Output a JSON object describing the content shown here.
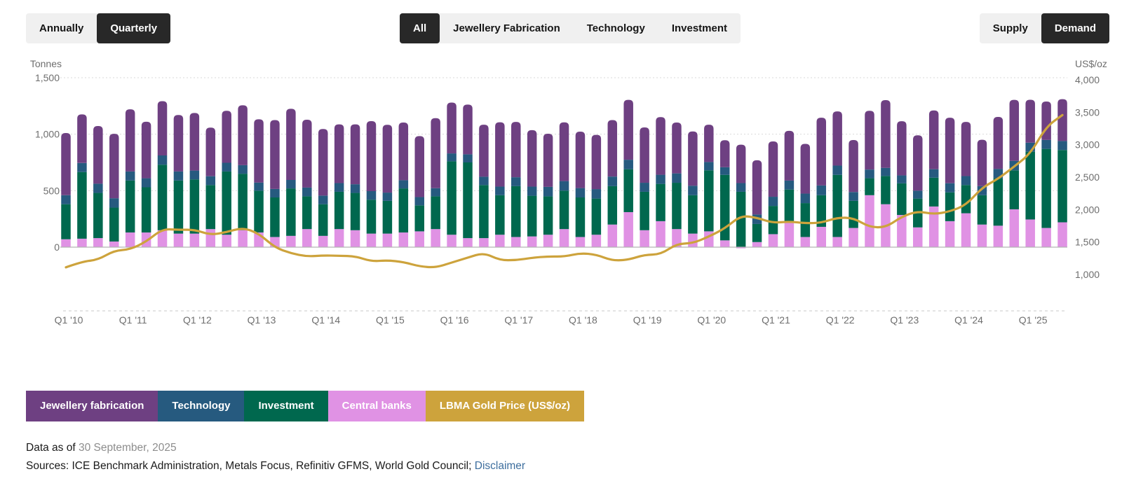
{
  "toolbar": {
    "groups": [
      {
        "name": "frequency",
        "options": [
          {
            "label": "Annually",
            "selected": false
          },
          {
            "label": "Quarterly",
            "selected": true
          }
        ]
      },
      {
        "name": "category",
        "options": [
          {
            "label": "All",
            "selected": true
          },
          {
            "label": "Jewellery Fabrication",
            "selected": false
          },
          {
            "label": "Technology",
            "selected": false
          },
          {
            "label": "Investment",
            "selected": false
          }
        ]
      },
      {
        "name": "flow",
        "options": [
          {
            "label": "Supply",
            "selected": false
          },
          {
            "label": "Demand",
            "selected": true
          }
        ]
      }
    ]
  },
  "chart_data": {
    "type": "bar",
    "subtype": "stacked-columns-with-line-overlay",
    "stack_order_bottom_to_top": [
      "Central banks",
      "Investment",
      "Technology",
      "Jewellery fabrication"
    ],
    "left_axis": {
      "title": "Tonnes",
      "ticks": [
        0,
        500,
        1000,
        1500
      ],
      "tick_labels": [
        "0",
        "500",
        "1,000",
        "1,500"
      ],
      "max": 1500
    },
    "right_axis": {
      "title": "US$/oz",
      "ticks": [
        1000,
        1500,
        2000,
        2500,
        3000,
        3500,
        4000
      ],
      "tick_labels": [
        "1,000",
        "1,500",
        "2,000",
        "2,500",
        "3,000",
        "3,500",
        "4,000"
      ]
    },
    "x_tick_labels": [
      "Q1 '10",
      "Q1 '11",
      "Q1 '12",
      "Q1 '13",
      "Q1 '14",
      "Q1 '15",
      "Q1 '16",
      "Q1 '17",
      "Q1 '18",
      "Q1 '19",
      "Q1 '20",
      "Q1 '21",
      "Q1 '22",
      "Q1 '23",
      "Q1 '24",
      "Q1 '25"
    ],
    "x": [
      "Q1 '10",
      "Q2 '10",
      "Q3 '10",
      "Q4 '10",
      "Q1 '11",
      "Q2 '11",
      "Q3 '11",
      "Q4 '11",
      "Q1 '12",
      "Q2 '12",
      "Q3 '12",
      "Q4 '12",
      "Q1 '13",
      "Q2 '13",
      "Q3 '13",
      "Q4 '13",
      "Q1 '14",
      "Q2 '14",
      "Q3 '14",
      "Q4 '14",
      "Q1 '15",
      "Q2 '15",
      "Q3 '15",
      "Q4 '15",
      "Q1 '16",
      "Q2 '16",
      "Q3 '16",
      "Q4 '16",
      "Q1 '17",
      "Q2 '17",
      "Q3 '17",
      "Q4 '17",
      "Q1 '18",
      "Q2 '18",
      "Q3 '18",
      "Q4 '18",
      "Q1 '19",
      "Q2 '19",
      "Q3 '19",
      "Q4 '19",
      "Q1 '20",
      "Q2 '20",
      "Q3 '20",
      "Q4 '20",
      "Q1 '21",
      "Q2 '21",
      "Q3 '21",
      "Q4 '21",
      "Q1 '22",
      "Q2 '22",
      "Q3 '22",
      "Q4 '22",
      "Q1 '23",
      "Q2 '23",
      "Q3 '23",
      "Q4 '23",
      "Q1 '24",
      "Q2 '24",
      "Q3 '24",
      "Q4 '24",
      "Q1 '25",
      "Q2 '25",
      "Q3 '25"
    ],
    "series": [
      {
        "name": "Jewellery fabrication",
        "color": "#6e4082",
        "values": [
          550,
          430,
          510,
          570,
          550,
          500,
          480,
          500,
          510,
          430,
          460,
          530,
          560,
          610,
          630,
          600,
          590,
          520,
          530,
          620,
          600,
          510,
          540,
          620,
          450,
          440,
          460,
          570,
          490,
          500,
          470,
          520,
          500,
          480,
          500,
          530,
          490,
          510,
          450,
          480,
          330,
          240,
          340,
          480,
          490,
          440,
          440,
          600,
          480,
          460,
          520,
          600,
          480,
          490,
          520,
          580,
          480,
          410,
          460,
          540,
          380,
          340,
          370
        ]
      },
      {
        "name": "Technology",
        "color": "#265a7f",
        "values": [
          80,
          80,
          82,
          83,
          80,
          80,
          82,
          80,
          78,
          78,
          77,
          76,
          72,
          75,
          75,
          78,
          76,
          77,
          77,
          76,
          73,
          73,
          73,
          72,
          70,
          72,
          74,
          76,
          79,
          81,
          84,
          85,
          83,
          84,
          85,
          84,
          80,
          81,
          83,
          84,
          74,
          67,
          77,
          84,
          81,
          80,
          84,
          86,
          82,
          78,
          77,
          72,
          70,
          70,
          75,
          81,
          79,
          81,
          83,
          84,
          80,
          79,
          80
        ]
      },
      {
        "name": "Investment",
        "color": "#00684e",
        "values": [
          310,
          590,
          400,
          300,
          460,
          400,
          580,
          470,
          480,
          390,
          560,
          500,
          370,
          350,
          420,
          290,
          280,
          330,
          330,
          300,
          290,
          390,
          230,
          290,
          650,
          670,
          470,
          350,
          450,
          360,
          340,
          340,
          350,
          320,
          340,
          380,
          340,
          330,
          410,
          340,
          540,
          580,
          490,
          160,
          250,
          280,
          300,
          280,
          550,
          240,
          150,
          250,
          280,
          255,
          255,
          255,
          250,
          260,
          420,
          345,
          600,
          700,
          640
        ]
      },
      {
        "name": "Central banks",
        "color": "#e092e4",
        "values": [
          70,
          75,
          80,
          50,
          130,
          130,
          150,
          120,
          120,
          160,
          110,
          150,
          130,
          90,
          100,
          160,
          100,
          160,
          150,
          120,
          120,
          130,
          140,
          160,
          110,
          80,
          80,
          110,
          90,
          95,
          110,
          160,
          90,
          110,
          200,
          310,
          150,
          230,
          160,
          120,
          140,
          60,
          -10,
          45,
          115,
          230,
          90,
          180,
          90,
          170,
          460,
          380,
          285,
          175,
          360,
          230,
          300,
          200,
          190,
          335,
          245,
          170,
          220
        ]
      }
    ],
    "line_series": {
      "name": "LBMA Gold Price (US$/oz)",
      "color": "#cda33c",
      "axis": "right",
      "values": [
        1110,
        1197,
        1227,
        1367,
        1386,
        1506,
        1702,
        1688,
        1691,
        1609,
        1652,
        1722,
        1632,
        1415,
        1326,
        1276,
        1293,
        1288,
        1282,
        1201,
        1218,
        1192,
        1124,
        1106,
        1183,
        1260,
        1335,
        1220,
        1219,
        1257,
        1278,
        1275,
        1329,
        1306,
        1213,
        1226,
        1304,
        1309,
        1472,
        1481,
        1583,
        1711,
        1909,
        1874,
        1794,
        1816,
        1790,
        1795,
        1877,
        1871,
        1729,
        1725,
        1890,
        1976,
        1928,
        1971,
        2070,
        2338,
        2474,
        2663,
        2860,
        3280,
        3457
      ]
    },
    "grid": "dotted-horizontal-at-left-axis-ticks",
    "legend_position": "bottom-left"
  },
  "legend": {
    "items": [
      {
        "label": "Jewellery fabrication",
        "color": "#6e4082"
      },
      {
        "label": "Technology",
        "color": "#265a7f"
      },
      {
        "label": "Investment",
        "color": "#00684e"
      },
      {
        "label": "Central banks",
        "color": "#e092e4"
      },
      {
        "label": "LBMA Gold Price (US$/oz)",
        "color": "#cda33c"
      }
    ]
  },
  "footer": {
    "data_as_of_label": "Data as of ",
    "data_as_of_value": "30 September, 2025",
    "sources_text": "Sources: ICE Benchmark Administration, Metals Focus, Refinitiv GFMS, World Gold Council; ",
    "disclaimer_label": "Disclaimer"
  },
  "colors": {
    "selected_button_bg": "#282828",
    "button_group_bg": "#f0f0f0",
    "axis_text": "#6e6e6e",
    "gridline": "#d9d9d9",
    "baseline": "#b3b3b3",
    "x_axis_dashed": "#c9c9c9",
    "link": "#3d6e9e"
  }
}
